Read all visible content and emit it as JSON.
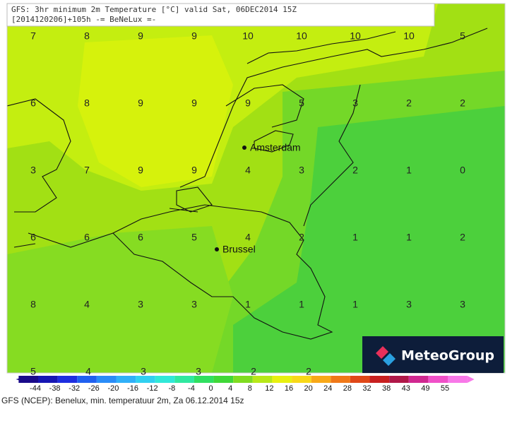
{
  "header": {
    "line1": "GFS: 3hr minimum 2m Temperature [°C] valid Sat, 06DEC2014 15Z",
    "line2": "[2014120206]+105h -= BeNeLux =-"
  },
  "grid": {
    "rows": [
      [
        "7",
        "8",
        "9",
        "9",
        "10",
        "10",
        "10",
        "10",
        "5"
      ],
      [
        "6",
        "8",
        "9",
        "9",
        "9",
        "5",
        "3",
        "2",
        "2"
      ],
      [
        "3",
        "7",
        "9",
        "9",
        "4",
        "3",
        "2",
        "1",
        "0"
      ],
      [
        "6",
        "6",
        "6",
        "5",
        "4",
        "2",
        "1",
        "1",
        "2"
      ],
      [
        "8",
        "4",
        "3",
        "3",
        "1",
        "1",
        "1",
        "3",
        "3"
      ],
      [
        "5",
        "4",
        "3",
        "3",
        "2",
        "2"
      ]
    ]
  },
  "cities": [
    {
      "name": "Amsterdam"
    },
    {
      "name": "Brussel"
    }
  ],
  "colorbar": {
    "labels": [
      "-44",
      "-38",
      "-32",
      "-26",
      "-20",
      "-16",
      "-12",
      "-8",
      "-4",
      "0",
      "4",
      "8",
      "12",
      "16",
      "20",
      "24",
      "28",
      "32",
      "38",
      "43",
      "49",
      "55"
    ]
  },
  "logo": "MeteoGroup",
  "caption": "GFS (NCEP): Benelux, min. temperatuur 2m, Za 06.12.2014 15z"
}
